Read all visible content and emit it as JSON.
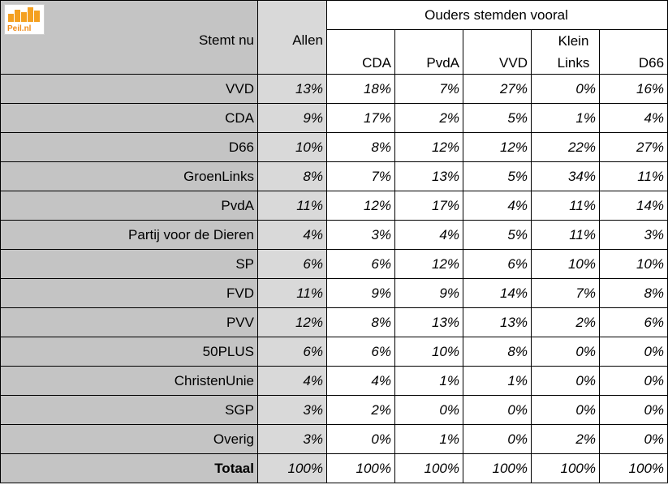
{
  "logo": {
    "text": "Peil.nl",
    "icon": "bar-chart-icon",
    "color": "#f4a020"
  },
  "header": {
    "row_label": "Stemt nu",
    "allen": "Allen",
    "group": "Ouders stemden vooral",
    "columns": [
      "CDA",
      "PvdA",
      "VVD",
      "Klein Links",
      "D66"
    ]
  },
  "colors": {
    "label_bg": "#c4c4c4",
    "allen_bg": "#d9d9d9",
    "cell_bg": "#ffffff"
  },
  "rows": [
    {
      "label": "VVD",
      "allen": "13%",
      "values": [
        "18%",
        "7%",
        "27%",
        "0%",
        "16%"
      ]
    },
    {
      "label": "CDA",
      "allen": "9%",
      "values": [
        "17%",
        "2%",
        "5%",
        "1%",
        "4%"
      ]
    },
    {
      "label": "D66",
      "allen": "10%",
      "values": [
        "8%",
        "12%",
        "12%",
        "22%",
        "27%"
      ]
    },
    {
      "label": "GroenLinks",
      "allen": "8%",
      "values": [
        "7%",
        "13%",
        "5%",
        "34%",
        "11%"
      ]
    },
    {
      "label": "PvdA",
      "allen": "11%",
      "values": [
        "12%",
        "17%",
        "4%",
        "11%",
        "14%"
      ]
    },
    {
      "label": "Partij voor de Dieren",
      "allen": "4%",
      "values": [
        "3%",
        "4%",
        "5%",
        "11%",
        "3%"
      ]
    },
    {
      "label": "SP",
      "allen": "6%",
      "values": [
        "6%",
        "12%",
        "6%",
        "10%",
        "10%"
      ]
    },
    {
      "label": "FVD",
      "allen": "11%",
      "values": [
        "9%",
        "9%",
        "14%",
        "7%",
        "8%"
      ]
    },
    {
      "label": "PVV",
      "allen": "12%",
      "values": [
        "8%",
        "13%",
        "13%",
        "2%",
        "6%"
      ]
    },
    {
      "label": "50PLUS",
      "allen": "6%",
      "values": [
        "6%",
        "10%",
        "8%",
        "0%",
        "0%"
      ]
    },
    {
      "label": "ChristenUnie",
      "allen": "4%",
      "values": [
        "4%",
        "1%",
        "1%",
        "0%",
        "0%"
      ]
    },
    {
      "label": "SGP",
      "allen": "3%",
      "values": [
        "2%",
        "0%",
        "0%",
        "0%",
        "0%"
      ]
    },
    {
      "label": "Overig",
      "allen": "3%",
      "values": [
        "0%",
        "1%",
        "0%",
        "2%",
        "0%"
      ]
    }
  ],
  "total": {
    "label": "Totaal",
    "allen": "100%",
    "values": [
      "100%",
      "100%",
      "100%",
      "100%",
      "100%"
    ]
  }
}
